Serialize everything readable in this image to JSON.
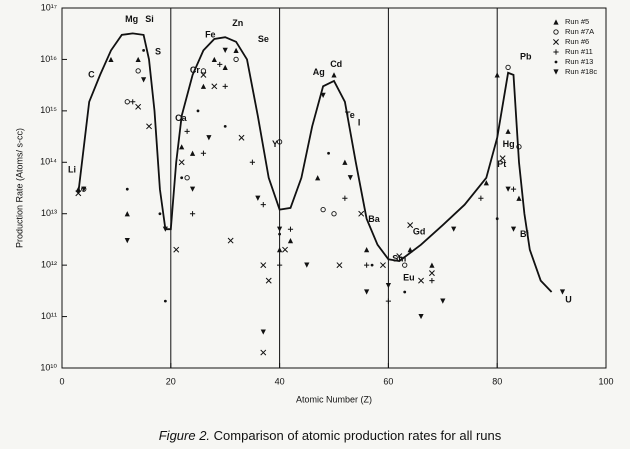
{
  "chart_data": {
    "type": "scatter",
    "xlabel": "Atomic Number (Z)",
    "ylabel": "Production Rate (Atoms/ s-cc)",
    "caption": {
      "label": "Figure 2.",
      "text": "Comparison of atomic production rates for all runs"
    },
    "log_y": true,
    "color": "#111111",
    "xlim": [
      0,
      100
    ],
    "xticks": [
      0,
      20,
      40,
      60,
      80,
      100
    ],
    "grid_x": true,
    "ylim": [
      10000000000.0,
      1e+17
    ],
    "yticks": [
      {
        "value": 10000000000.0,
        "label": "10¹⁰"
      },
      {
        "value": 100000000000.0,
        "label": "10¹¹"
      },
      {
        "value": 1000000000000.0,
        "label": "10¹²"
      },
      {
        "value": 10000000000000.0,
        "label": "10¹³"
      },
      {
        "value": 100000000000000.0,
        "label": "10¹⁴"
      },
      {
        "value": 1000000000000000.0,
        "label": "10¹⁵"
      },
      {
        "value": 1e+16,
        "label": "10¹⁶"
      },
      {
        "value": 1e+17,
        "label": "10¹⁷"
      }
    ],
    "series": [
      {
        "name": "Run #5",
        "marker": "triangle-up",
        "x": [
          3,
          9,
          12,
          14,
          22,
          24,
          26,
          28,
          30,
          32,
          40,
          42,
          47,
          50,
          52,
          56,
          64,
          68,
          78,
          80,
          82,
          84
        ],
        "values": [
          30000000000000.0,
          1e+16,
          10000000000000.0,
          1e+16,
          200000000000000.0,
          150000000000000.0,
          3000000000000000.0,
          1e+16,
          7000000000000000.0,
          1.5e+16,
          2000000000000.0,
          3000000000000.0,
          50000000000000.0,
          5000000000000000.0,
          100000000000000.0,
          2000000000000.0,
          2000000000000.0,
          1000000000000.0,
          40000000000000.0,
          5000000000000000.0,
          400000000000000.0,
          20000000000000.0
        ]
      },
      {
        "name": "Run #7A",
        "marker": "circle-open",
        "x": [
          4,
          12,
          14,
          23,
          26,
          32,
          40,
          48,
          50,
          63,
          82,
          84
        ],
        "values": [
          30000000000000.0,
          1500000000000000.0,
          6000000000000000.0,
          50000000000000.0,
          6000000000000000.0,
          1e+16,
          250000000000000.0,
          12000000000000.0,
          10000000000000.0,
          1000000000000.0,
          7000000000000000.0,
          200000000000000.0
        ]
      },
      {
        "name": "Run #6",
        "marker": "cross",
        "x": [
          3,
          14,
          16,
          21,
          22,
          26,
          28,
          31,
          33,
          37,
          38,
          41,
          51,
          55,
          59,
          62,
          64,
          66,
          68,
          81,
          37
        ],
        "values": [
          25000000000000.0,
          1200000000000000.0,
          500000000000000.0,
          2000000000000.0,
          100000000000000.0,
          5000000000000000.0,
          3000000000000000.0,
          3000000000000.0,
          300000000000000.0,
          1000000000000.0,
          500000000000.0,
          2000000000000.0,
          1000000000000.0,
          10000000000000.0,
          1000000000000.0,
          1500000000000.0,
          6000000000000.0,
          500000000000.0,
          700000000000.0,
          120000000000000.0,
          20000000000.0
        ]
      },
      {
        "name": "Run #11",
        "marker": "plus",
        "x": [
          13,
          23,
          24,
          26,
          29,
          30,
          35,
          37,
          40,
          42,
          52,
          56,
          60,
          68,
          77,
          83
        ],
        "values": [
          1500000000000000.0,
          400000000000000.0,
          10000000000000.0,
          150000000000000.0,
          8000000000000000.0,
          3000000000000000.0,
          100000000000000.0,
          15000000000000.0,
          1000000000000.0,
          5000000000000.0,
          20000000000000.0,
          1000000000000.0,
          200000000000.0,
          500000000000.0,
          20000000000000.0,
          30000000000000.0
        ]
      },
      {
        "name": "Run #13",
        "marker": "dot",
        "x": [
          12,
          15,
          18,
          19,
          22,
          25,
          30,
          40,
          49,
          57,
          63,
          80
        ],
        "values": [
          30000000000000.0,
          1.5e+16,
          10000000000000.0,
          200000000000.0,
          50000000000000.0,
          1000000000000000.0,
          500000000000000.0,
          4000000000000.0,
          150000000000000.0,
          1000000000000.0,
          300000000000.0,
          8000000000000.0
        ]
      },
      {
        "name": "Run #18c",
        "marker": "triangle-down",
        "x": [
          4,
          12,
          15,
          19,
          24,
          27,
          30,
          36,
          37,
          40,
          45,
          48,
          53,
          56,
          60,
          66,
          70,
          72,
          82,
          83,
          92
        ],
        "values": [
          30000000000000.0,
          3000000000000.0,
          4000000000000000.0,
          5000000000000.0,
          30000000000000.0,
          300000000000000.0,
          1.5e+16,
          20000000000000.0,
          50000000000.0,
          5000000000000.0,
          1000000000000.0,
          2000000000000000.0,
          50000000000000.0,
          300000000000.0,
          400000000000.0,
          100000000000.0,
          200000000000.0,
          5000000000000.0,
          30000000000000.0,
          5000000000000.0,
          300000000000.0
        ]
      }
    ],
    "fit": {
      "x": [
        3,
        5,
        7,
        9,
        11,
        13,
        15,
        16,
        17,
        18,
        19,
        20,
        21,
        22,
        24,
        26,
        28,
        30,
        32,
        34,
        36,
        38,
        40,
        42,
        44,
        46,
        48,
        50,
        52,
        54,
        56,
        58,
        60,
        62,
        66,
        70,
        74,
        78,
        80,
        82,
        83,
        84,
        85,
        86,
        88,
        90
      ],
      "values": [
        25000000000000.0,
        1500000000000000.0,
        5000000000000000.0,
        1.5e+16,
        3e+16,
        3.2e+16,
        3e+16,
        1e+16,
        1000000000000000.0,
        30000000000000.0,
        5000000000000.0,
        5000000000000.0,
        100000000000000.0,
        800000000000000.0,
        5000000000000000.0,
        1.5e+16,
        2.5e+16,
        2.7e+16,
        2.2e+16,
        1e+16,
        800000000000000.0,
        50000000000000.0,
        12000000000000.0,
        13000000000000.0,
        50000000000000.0,
        500000000000000.0,
        3000000000000000.0,
        3800000000000000.0,
        1500000000000000.0,
        100000000000000.0,
        8000000000000.0,
        2500000000000.0,
        1300000000000.0,
        1200000000000.0,
        2500000000000.0,
        6000000000000.0,
        15000000000000.0,
        50000000000000.0,
        300000000000000.0,
        5500000000000000.0,
        5000000000000000.0,
        100000000000000.0,
        10000000000000.0,
        2000000000000.0,
        500000000000.0,
        300000000000.0
      ]
    },
    "annotations": [
      {
        "text": "Li",
        "x": 1.1,
        "y": 70000000000000.0
      },
      {
        "text": "C",
        "x": 4.8,
        "y": 5000000000000000.0
      },
      {
        "text": "Mg",
        "x": 11.6,
        "y": 6e+16
      },
      {
        "text": "Si",
        "x": 15.3,
        "y": 6e+16
      },
      {
        "text": "S",
        "x": 17.1,
        "y": 1.4e+16
      },
      {
        "text": "Ca",
        "x": 20.8,
        "y": 700000000000000.0
      },
      {
        "text": "Cr",
        "x": 23.5,
        "y": 6000000000000000.0
      },
      {
        "text": "Fe",
        "x": 26.3,
        "y": 3e+16
      },
      {
        "text": "Zn",
        "x": 31.3,
        "y": 5e+16
      },
      {
        "text": "Se",
        "x": 36,
        "y": 2.4e+16
      },
      {
        "text": "Y",
        "x": 38.6,
        "y": 220000000000000.0
      },
      {
        "text": "Ag",
        "x": 46.1,
        "y": 5500000000000000.0
      },
      {
        "text": "Cd",
        "x": 49.3,
        "y": 8000000000000000.0
      },
      {
        "text": "Te",
        "x": 52,
        "y": 800000000000000.0
      },
      {
        "text": "I",
        "x": 54.4,
        "y": 580000000000000.0
      },
      {
        "text": "Ba",
        "x": 56.3,
        "y": 7600000000000.0
      },
      {
        "text": "Gd",
        "x": 64.5,
        "y": 4400000000000.0
      },
      {
        "text": "Sm",
        "x": 60.7,
        "y": 1300000000000.0
      },
      {
        "text": "Eu",
        "x": 62.7,
        "y": 560000000000.0
      },
      {
        "text": "Pt",
        "x": 80,
        "y": 90000000000000.0
      },
      {
        "text": "Hg",
        "x": 81,
        "y": 220000000000000.0
      },
      {
        "text": "Pb",
        "x": 84.2,
        "y": 1.1e+16
      },
      {
        "text": "Bi",
        "x": 84.2,
        "y": 3900000000000.0
      },
      {
        "text": "U",
        "x": 92.5,
        "y": 210000000000.0
      }
    ]
  }
}
